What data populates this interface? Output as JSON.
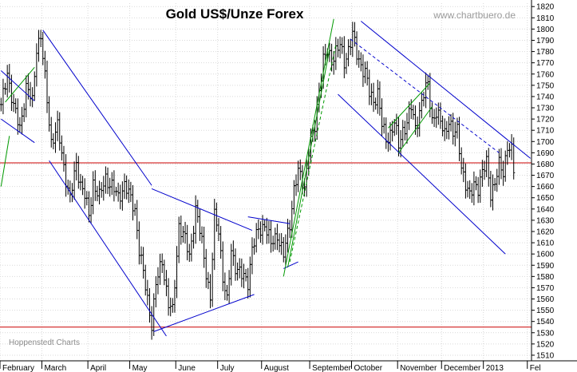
{
  "chart_data": {
    "type": "ohlc",
    "title": "Gold US$/Unze Forex",
    "source": "www.chartbuero.de",
    "credit": "Hoppenstedt Charts",
    "ylim": [
      1505,
      1823
    ],
    "yticks": [
      1510,
      1520,
      1530,
      1540,
      1550,
      1560,
      1570,
      1580,
      1590,
      1600,
      1610,
      1620,
      1630,
      1640,
      1650,
      1660,
      1670,
      1680,
      1690,
      1700,
      1710,
      1720,
      1730,
      1740,
      1750,
      1760,
      1770,
      1780,
      1790,
      1800,
      1810,
      1820
    ],
    "months": [
      {
        "label": "February",
        "start": 0
      },
      {
        "label": "March",
        "start": 20
      },
      {
        "label": "April",
        "start": 42
      },
      {
        "label": "May",
        "start": 62
      },
      {
        "label": "June",
        "start": 84
      },
      {
        "label": "July",
        "start": 104
      },
      {
        "label": "August",
        "start": 125
      },
      {
        "label": "September",
        "start": 148
      },
      {
        "label": "October",
        "start": 168
      },
      {
        "label": "November",
        "start": 190
      },
      {
        "label": "December",
        "start": 211
      },
      {
        "label": "2013",
        "start": 231
      },
      {
        "label": "Fel",
        "start": 252
      }
    ],
    "n_bars": 246,
    "grid": true,
    "price_lines": [
      {
        "value": 1681,
        "color": "#cc0000"
      },
      {
        "value": 1535,
        "color": "#cc0000"
      }
    ],
    "trend_lines": [
      {
        "color": "#0000cc",
        "dash": false,
        "points": [
          [
            0,
            1763
          ],
          [
            16,
            1736
          ]
        ]
      },
      {
        "color": "#0000cc",
        "dash": false,
        "points": [
          [
            0,
            1720
          ],
          [
            16,
            1699
          ]
        ]
      },
      {
        "color": "#0000cc",
        "dash": false,
        "points": [
          [
            20,
            1799
          ],
          [
            72,
            1661
          ]
        ]
      },
      {
        "color": "#0000cc",
        "dash": false,
        "points": [
          [
            23,
            1683
          ],
          [
            79,
            1527
          ]
        ]
      },
      {
        "color": "#0000cc",
        "dash": false,
        "points": [
          [
            72,
            1658
          ],
          [
            120,
            1621
          ]
        ]
      },
      {
        "color": "#0000cc",
        "dash": false,
        "points": [
          [
            73,
            1531
          ],
          [
            121,
            1564
          ]
        ]
      },
      {
        "color": "#0000cc",
        "dash": false,
        "points": [
          [
            118,
            1633
          ],
          [
            138,
            1627
          ]
        ]
      },
      {
        "color": "#0000cc",
        "dash": false,
        "points": [
          [
            135,
            1587
          ],
          [
            142,
            1593
          ]
        ]
      },
      {
        "color": "#0000cc",
        "dash": false,
        "points": [
          [
            172,
            1807
          ],
          [
            253,
            1685
          ]
        ]
      },
      {
        "color": "#0000cc",
        "dash": false,
        "points": [
          [
            161,
            1742
          ],
          [
            241,
            1600
          ]
        ]
      },
      {
        "color": "#0000cc",
        "dash": true,
        "points": [
          [
            167,
            1791
          ],
          [
            238,
            1690
          ]
        ]
      },
      {
        "color": "#009900",
        "dash": false,
        "points": [
          [
            2,
            1735
          ],
          [
            16,
            1766
          ]
        ]
      },
      {
        "color": "#009900",
        "dash": false,
        "points": [
          [
            0,
            1660
          ],
          [
            4,
            1705
          ]
        ]
      },
      {
        "color": "#009900",
        "dash": false,
        "points": [
          [
            135,
            1580
          ],
          [
            159,
            1809
          ]
        ]
      },
      {
        "color": "#009900",
        "dash": false,
        "points": [
          [
            137,
            1588
          ],
          [
            157,
            1782
          ]
        ]
      },
      {
        "color": "#009900",
        "dash": true,
        "points": [
          [
            138,
            1593
          ],
          [
            160,
            1786
          ]
        ]
      },
      {
        "color": "#009900",
        "dash": false,
        "points": [
          [
            185,
            1712
          ],
          [
            205,
            1752
          ]
        ]
      },
      {
        "color": "#009900",
        "dash": false,
        "points": [
          [
            190,
            1690
          ],
          [
            206,
            1731
          ]
        ]
      }
    ],
    "anchors": [
      [
        0,
        1730
      ],
      [
        3,
        1762
      ],
      [
        6,
        1730
      ],
      [
        9,
        1712
      ],
      [
        12,
        1748
      ],
      [
        15,
        1735
      ],
      [
        17,
        1785
      ],
      [
        19,
        1793
      ],
      [
        21,
        1755
      ],
      [
        24,
        1700
      ],
      [
        27,
        1712
      ],
      [
        30,
        1678
      ],
      [
        33,
        1648
      ],
      [
        36,
        1680
      ],
      [
        38,
        1663
      ],
      [
        40,
        1652
      ],
      [
        42,
        1633
      ],
      [
        44,
        1664
      ],
      [
        47,
        1650
      ],
      [
        50,
        1668
      ],
      [
        53,
        1660
      ],
      [
        56,
        1650
      ],
      [
        59,
        1662
      ],
      [
        62,
        1648
      ],
      [
        64,
        1640
      ],
      [
        66,
        1604
      ],
      [
        68,
        1582
      ],
      [
        70,
        1560
      ],
      [
        72,
        1538
      ],
      [
        74,
        1572
      ],
      [
        77,
        1595
      ],
      [
        80,
        1555
      ],
      [
        82,
        1548
      ],
      [
        85,
        1626
      ],
      [
        88,
        1612
      ],
      [
        90,
        1598
      ],
      [
        93,
        1640
      ],
      [
        96,
        1610
      ],
      [
        98,
        1585
      ],
      [
        100,
        1560
      ],
      [
        102,
        1632
      ],
      [
        104,
        1622
      ],
      [
        106,
        1580
      ],
      [
        108,
        1556
      ],
      [
        110,
        1603
      ],
      [
        112,
        1590
      ],
      [
        115,
        1580
      ],
      [
        118,
        1576
      ],
      [
        120,
        1605
      ],
      [
        123,
        1620
      ],
      [
        126,
        1627
      ],
      [
        129,
        1608
      ],
      [
        132,
        1618
      ],
      [
        135,
        1598
      ],
      [
        138,
        1628
      ],
      [
        140,
        1658
      ],
      [
        142,
        1672
      ],
      [
        145,
        1660
      ],
      [
        147,
        1693
      ],
      [
        150,
        1712
      ],
      [
        152,
        1748
      ],
      [
        154,
        1773
      ],
      [
        156,
        1778
      ],
      [
        158,
        1772
      ],
      [
        160,
        1782
      ],
      [
        162,
        1785
      ],
      [
        164,
        1769
      ],
      [
        166,
        1783
      ],
      [
        168,
        1796
      ],
      [
        170,
        1776
      ],
      [
        172,
        1768
      ],
      [
        174,
        1763
      ],
      [
        176,
        1742
      ],
      [
        178,
        1735
      ],
      [
        180,
        1745
      ],
      [
        182,
        1715
      ],
      [
        184,
        1700
      ],
      [
        186,
        1708
      ],
      [
        188,
        1718
      ],
      [
        190,
        1695
      ],
      [
        192,
        1710
      ],
      [
        194,
        1718
      ],
      [
        196,
        1730
      ],
      [
        198,
        1711
      ],
      [
        200,
        1728
      ],
      [
        202,
        1742
      ],
      [
        204,
        1750
      ],
      [
        206,
        1720
      ],
      [
        208,
        1726
      ],
      [
        210,
        1716
      ],
      [
        212,
        1708
      ],
      [
        214,
        1720
      ],
      [
        216,
        1705
      ],
      [
        218,
        1710
      ],
      [
        220,
        1680
      ],
      [
        222,
        1660
      ],
      [
        224,
        1650
      ],
      [
        226,
        1665
      ],
      [
        228,
        1658
      ],
      [
        230,
        1670
      ],
      [
        232,
        1684
      ],
      [
        234,
        1655
      ],
      [
        236,
        1660
      ],
      [
        238,
        1680
      ],
      [
        240,
        1675
      ],
      [
        242,
        1694
      ],
      [
        244,
        1690
      ],
      [
        246,
        1660
      ]
    ]
  }
}
